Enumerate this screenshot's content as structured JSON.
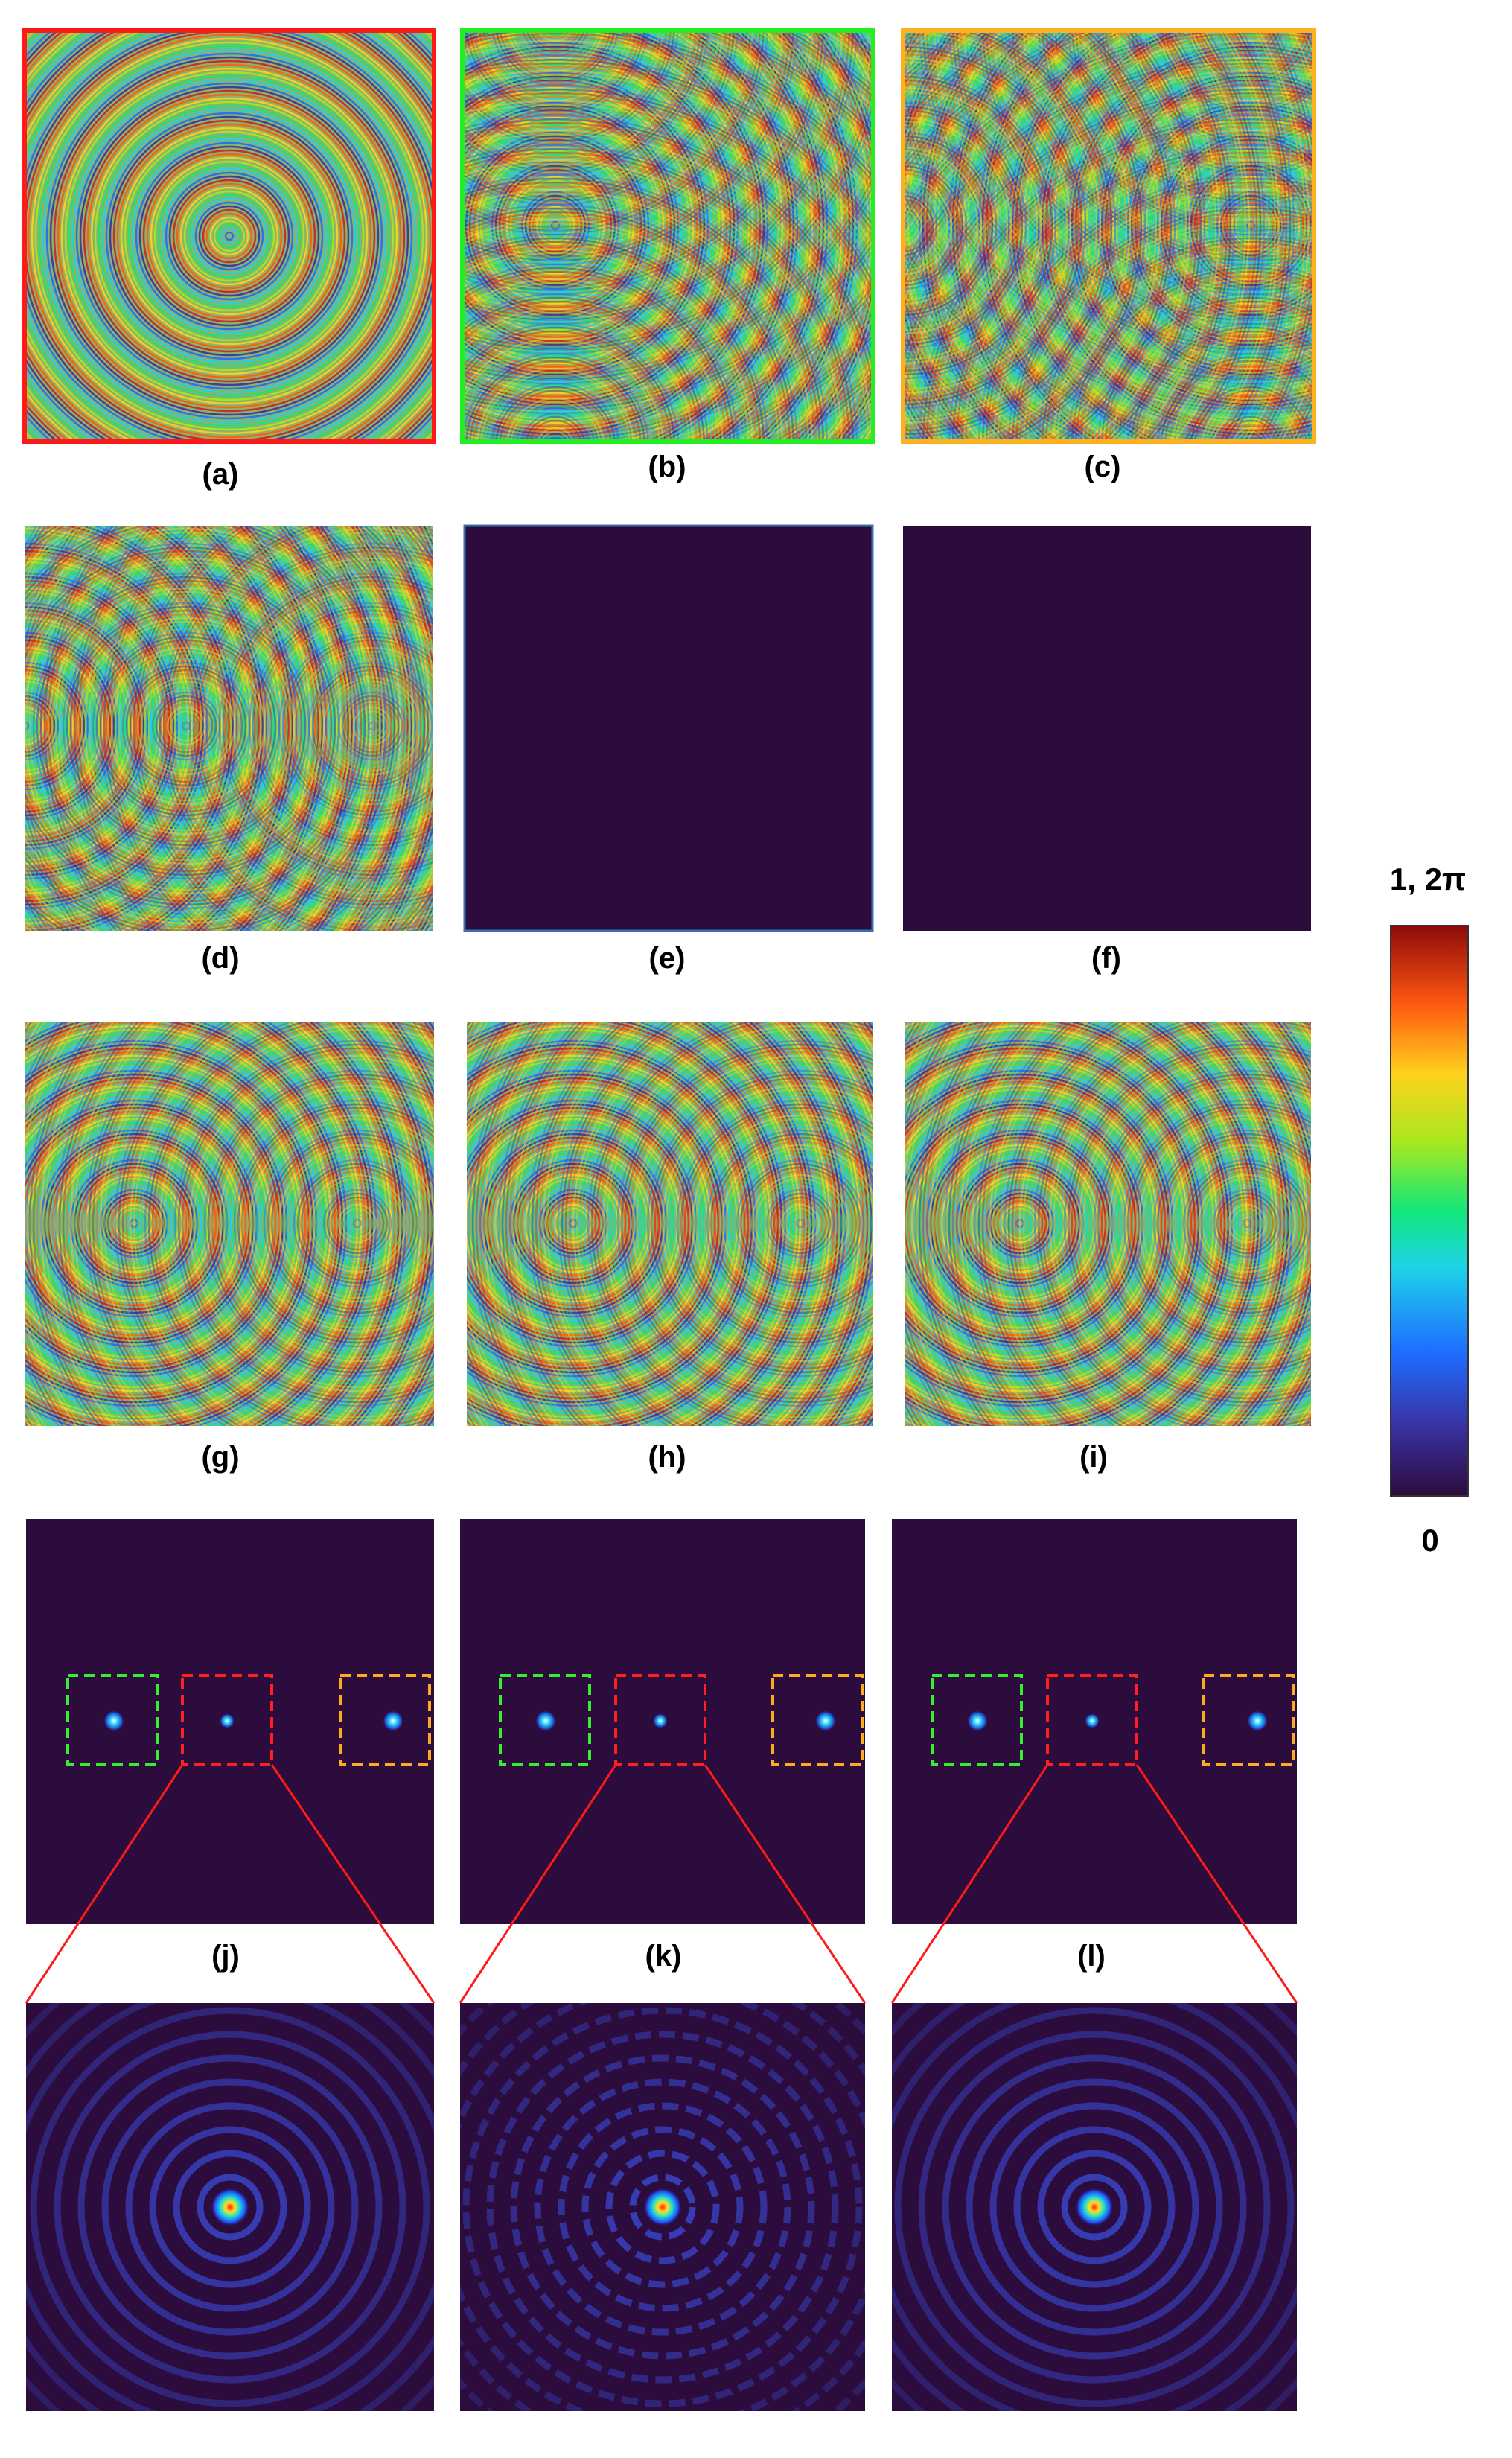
{
  "panels": [
    {
      "id": "a",
      "label": "(a)",
      "type": "phase",
      "border": "#ff1a1a",
      "pattern": "single_center"
    },
    {
      "id": "b",
      "label": "(b)",
      "type": "phase",
      "border": "#22ee22",
      "pattern": "single_left"
    },
    {
      "id": "c",
      "label": "(c)",
      "type": "phase",
      "border": "#ffb020",
      "pattern": "single_right"
    },
    {
      "id": "d",
      "label": "(d)",
      "type": "phase",
      "border": "",
      "pattern": "multi_edge"
    },
    {
      "id": "e",
      "label": "(e)",
      "type": "amplitude_uniform",
      "border": "#3a6fb0",
      "pattern": "flat"
    },
    {
      "id": "f",
      "label": "(f)",
      "type": "amplitude_uniform",
      "border": "",
      "pattern": "flat"
    },
    {
      "id": "g",
      "label": "(g)",
      "type": "phase",
      "border": "",
      "pattern": "multi_lr"
    },
    {
      "id": "h",
      "label": "(h)",
      "type": "phase",
      "border": "",
      "pattern": "multi_noisy"
    },
    {
      "id": "i",
      "label": "(i)",
      "type": "phase",
      "border": "",
      "pattern": "multi_lr_strong"
    },
    {
      "id": "j",
      "label": "(j)",
      "type": "intensity",
      "border": "",
      "pattern": "foci"
    },
    {
      "id": "k",
      "label": "(k)",
      "type": "intensity",
      "border": "",
      "pattern": "foci"
    },
    {
      "id": "l",
      "label": "(l)",
      "type": "intensity",
      "border": "",
      "pattern": "foci"
    }
  ],
  "zooms": [
    {
      "id": "j_zoom",
      "of": "j",
      "noise": "low"
    },
    {
      "id": "k_zoom",
      "of": "k",
      "noise": "high"
    },
    {
      "id": "l_zoom",
      "of": "l",
      "noise": "low"
    }
  ],
  "focus_boxes": [
    {
      "color": "#33ee33",
      "role": "left focus"
    },
    {
      "color": "#ff2020",
      "role": "center focus"
    },
    {
      "color": "#ffaa22",
      "role": "right focus"
    }
  ],
  "colorbar": {
    "top_label": "1, 2π",
    "bottom_label": "0",
    "colormap": "jet",
    "bottom_color": "#2c0c3c"
  },
  "colors": {
    "background_dark": "#2c0c3c",
    "zoom_line": "#ff1a1a"
  }
}
